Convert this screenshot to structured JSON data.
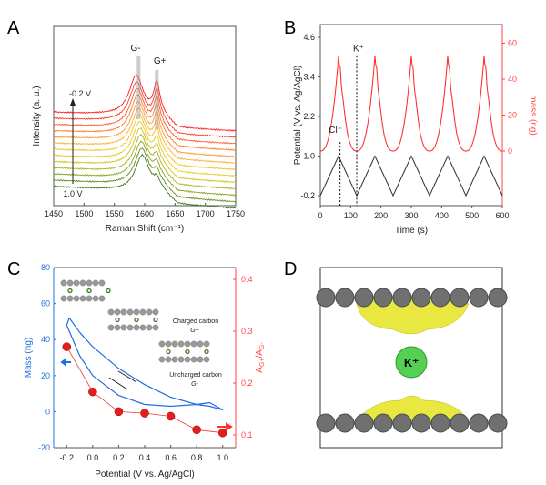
{
  "panel_labels": [
    "A",
    "B",
    "C",
    "D"
  ],
  "chart_data": [
    {
      "panel": "A",
      "type": "line",
      "xlabel": "Raman Shift (cm-1)",
      "ylabel": "Intensity (a. u.)",
      "xlim": [
        1450,
        1750
      ],
      "xticks": [
        1450,
        1500,
        1550,
        1600,
        1650,
        1700,
        1750
      ],
      "annotations": {
        "peak_minus": "G-",
        "peak_plus": "G+",
        "top_voltage": "-0.2 V",
        "bottom_voltage": "1.0 V"
      },
      "spectra_count": 13,
      "peak_minus_position": [
        1586,
        1596
      ],
      "peak_plus_position": 1620,
      "colors": [
        "#ff1a1a",
        "#ff3b2a",
        "#ff5a2a",
        "#ff7a2a",
        "#ff952a",
        "#ffae2a",
        "#f4c020",
        "#e6cc20",
        "#c9c420",
        "#a8b41c",
        "#86a01c",
        "#648a1c",
        "#3f7a1e"
      ]
    },
    {
      "panel": "B",
      "type": "line",
      "xlabel": "Time (s)",
      "ylabel": "Potential (V vs. Ag/AgCl)",
      "y2label": "mass (ng)",
      "xlim": [
        0,
        600
      ],
      "xticks": [
        0,
        100,
        200,
        300,
        400,
        500,
        600
      ],
      "yticks": [
        -0.2,
        1.0,
        2.2,
        3.4,
        4.6
      ],
      "y2ticks": [
        0,
        20,
        40,
        60
      ],
      "annotations": {
        "cl": "Cl-",
        "k": "K+"
      },
      "annotation_times": [
        65,
        120
      ],
      "series": [
        {
          "color": "#333333",
          "x": [
            0,
            60,
            120,
            180,
            240,
            300,
            360,
            420,
            480,
            540,
            600
          ],
          "values": [
            -0.2,
            1.0,
            -0.2,
            1.0,
            -0.2,
            1.0,
            -0.2,
            1.0,
            -0.2,
            1.0,
            -0.2
          ]
        },
        {
          "color": "#ff2020",
          "peak_times": [
            0,
            120,
            240,
            360,
            480,
            600
          ],
          "peak_mass": 53,
          "min_mass": 0,
          "bump_mass": 5
        }
      ]
    },
    {
      "panel": "C",
      "type": "scatter",
      "xlabel": "Potential (V vs. Ag/AgCl)",
      "ylabel": "Mass (ng)",
      "y2label": "AG+/AG-",
      "xlim": [
        -0.3,
        1.1
      ],
      "xticks": [
        -0.2,
        0.0,
        0.2,
        0.4,
        0.6,
        0.8,
        1.0
      ],
      "yticks": [
        -20,
        0,
        20,
        40,
        60,
        80
      ],
      "y2ticks": [
        0.1,
        0.2,
        0.3,
        0.4
      ],
      "annotations": {
        "charged": "Charged carbon",
        "g_plus": "G+",
        "uncharged": "Uncharged carbon",
        "g_minus": "G-"
      },
      "series": [
        {
          "color": "#1f6fe0",
          "x": [
            -0.2,
            -0.18,
            -0.1,
            0.0,
            0.2,
            0.4,
            0.6,
            0.8,
            0.9,
            1.0,
            0.9,
            0.8,
            0.6,
            0.4,
            0.2,
            0.0,
            -0.1,
            -0.2
          ],
          "values": [
            48,
            52,
            44,
            36,
            24,
            15,
            8,
            4,
            3,
            1,
            5,
            4,
            3,
            4,
            9,
            20,
            31,
            48
          ]
        },
        {
          "color": "#f23a3a",
          "x": [
            -0.2,
            0.0,
            0.2,
            0.4,
            0.6,
            0.8,
            1.0
          ],
          "values": [
            0.27,
            0.183,
            0.145,
            0.142,
            0.136,
            0.11,
            0.104
          ]
        }
      ]
    },
    {
      "panel": "D",
      "type": "diagram",
      "label": "K+"
    }
  ]
}
